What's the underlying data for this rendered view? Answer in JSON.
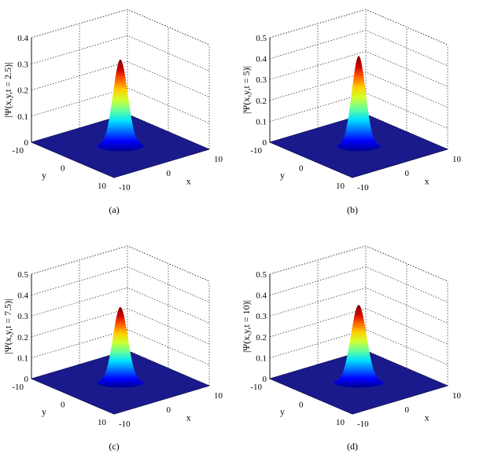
{
  "colors": {
    "base": "#1a1a8c",
    "gridline": "#222222",
    "colormap": [
      "#00008f",
      "#0000ff",
      "#0070ff",
      "#00e0ff",
      "#60ff9f",
      "#d0ff30",
      "#ffd000",
      "#ff6000",
      "#d00000",
      "#800000"
    ]
  },
  "chart_data": [
    {
      "type": "surface",
      "caption": "(a)",
      "zlabel": "|Ψ(x,y,t = 2.5)|",
      "xlabel": "x",
      "ylabel": "y",
      "xlim": [
        -10,
        10
      ],
      "ylim": [
        -10,
        10
      ],
      "zlim": [
        0,
        0.4
      ],
      "xticks": [
        "-10",
        "0",
        "10"
      ],
      "yticks": [
        "-10",
        "0",
        "10"
      ],
      "zticks": [
        "0",
        "0.1",
        "0.2",
        "0.3",
        "0.4"
      ],
      "peak": 0.33,
      "width": 1.5
    },
    {
      "type": "surface",
      "caption": "(b)",
      "zlabel": "|Ψ(x,y,t = 5)|",
      "xlabel": "x",
      "ylabel": "y",
      "xlim": [
        -10,
        10
      ],
      "ylim": [
        -10,
        10
      ],
      "zlim": [
        0,
        0.5
      ],
      "xticks": [
        "-10",
        "0",
        "10"
      ],
      "yticks": [
        "-10",
        "0",
        "10"
      ],
      "zticks": [
        "0",
        "0.1",
        "0.2",
        "0.3",
        "0.4",
        "0.5"
      ],
      "peak": 0.43,
      "width": 1.4
    },
    {
      "type": "surface",
      "caption": "(c)",
      "zlabel": "|Ψ(x,y,t = 7.5)|",
      "xlabel": "x",
      "ylabel": "y",
      "xlim": [
        -10,
        10
      ],
      "ylim": [
        -10,
        10
      ],
      "zlim": [
        0,
        0.5
      ],
      "xticks": [
        "-10",
        "0",
        "10"
      ],
      "yticks": [
        "-10",
        "0",
        "10"
      ],
      "zticks": [
        "0",
        "0.1",
        "0.2",
        "0.3",
        "0.4",
        "0.5"
      ],
      "peak": 0.36,
      "width": 1.5
    },
    {
      "type": "surface",
      "caption": "(d)",
      "zlabel": "|Ψ(x,y,t = 10)|",
      "xlabel": "x",
      "ylabel": "y",
      "xlim": [
        -10,
        10
      ],
      "ylim": [
        -10,
        10
      ],
      "zlim": [
        0,
        0.5
      ],
      "xticks": [
        "-10",
        "0",
        "10"
      ],
      "yticks": [
        "-10",
        "0",
        "10"
      ],
      "zticks": [
        "0",
        "0.1",
        "0.2",
        "0.3",
        "0.4",
        "0.5"
      ],
      "peak": 0.37,
      "width": 1.6
    }
  ]
}
